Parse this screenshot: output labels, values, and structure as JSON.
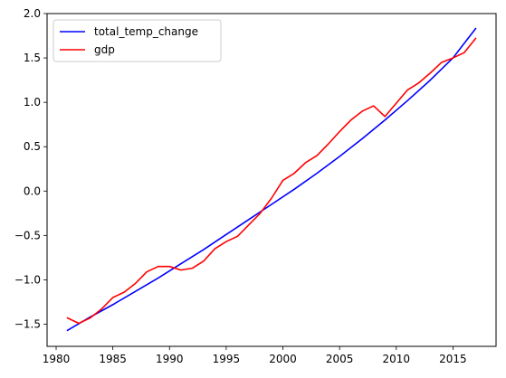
{
  "chart_data": {
    "type": "line",
    "title": "",
    "xlabel": "",
    "ylabel": "",
    "xlim": [
      1979.2,
      2018.8
    ],
    "ylim": [
      -1.75,
      2.0
    ],
    "xticks": [
      1980,
      1985,
      1990,
      1995,
      2000,
      2005,
      2010,
      2015
    ],
    "yticks": [
      -1.5,
      -1.0,
      -0.5,
      0.0,
      0.5,
      1.0,
      1.5,
      2.0
    ],
    "xtick_labels": [
      "1980",
      "1985",
      "1990",
      "1995",
      "2000",
      "2005",
      "2010",
      "2015"
    ],
    "ytick_labels": [
      "−1.5",
      "−1.0",
      "−0.5",
      "0.0",
      "0.5",
      "1.0",
      "1.5",
      "2.0"
    ],
    "grid": false,
    "legend_position": "upper-left",
    "series": [
      {
        "name": "total_temp_change",
        "color": "#0000ff",
        "x": [
          1981,
          1983,
          1985,
          1987,
          1989,
          1991,
          1993,
          1995,
          1997,
          1999,
          2001,
          2003,
          2005,
          2007,
          2009,
          2011,
          2013,
          2015,
          2017
        ],
        "y": [
          -1.57,
          -1.42,
          -1.28,
          -1.13,
          -0.98,
          -0.82,
          -0.66,
          -0.49,
          -0.32,
          -0.15,
          0.02,
          0.2,
          0.39,
          0.59,
          0.8,
          1.02,
          1.25,
          1.5,
          1.83
        ]
      },
      {
        "name": "gdp",
        "color": "#ff0000",
        "x": [
          1981,
          1982,
          1983,
          1984,
          1985,
          1986,
          1987,
          1988,
          1989,
          1990,
          1991,
          1992,
          1993,
          1994,
          1995,
          1996,
          1997,
          1998,
          1999,
          2000,
          2001,
          2002,
          2003,
          2004,
          2005,
          2006,
          2007,
          2008,
          2009,
          2010,
          2011,
          2012,
          2013,
          2014,
          2015,
          2016,
          2017
        ],
        "y": [
          -1.43,
          -1.49,
          -1.43,
          -1.33,
          -1.2,
          -1.14,
          -1.04,
          -0.91,
          -0.85,
          -0.85,
          -0.89,
          -0.87,
          -0.79,
          -0.65,
          -0.57,
          -0.51,
          -0.38,
          -0.25,
          -0.08,
          0.12,
          0.2,
          0.32,
          0.4,
          0.53,
          0.67,
          0.8,
          0.9,
          0.96,
          0.84,
          0.99,
          1.14,
          1.22,
          1.33,
          1.45,
          1.5,
          1.56,
          1.72
        ]
      }
    ]
  }
}
